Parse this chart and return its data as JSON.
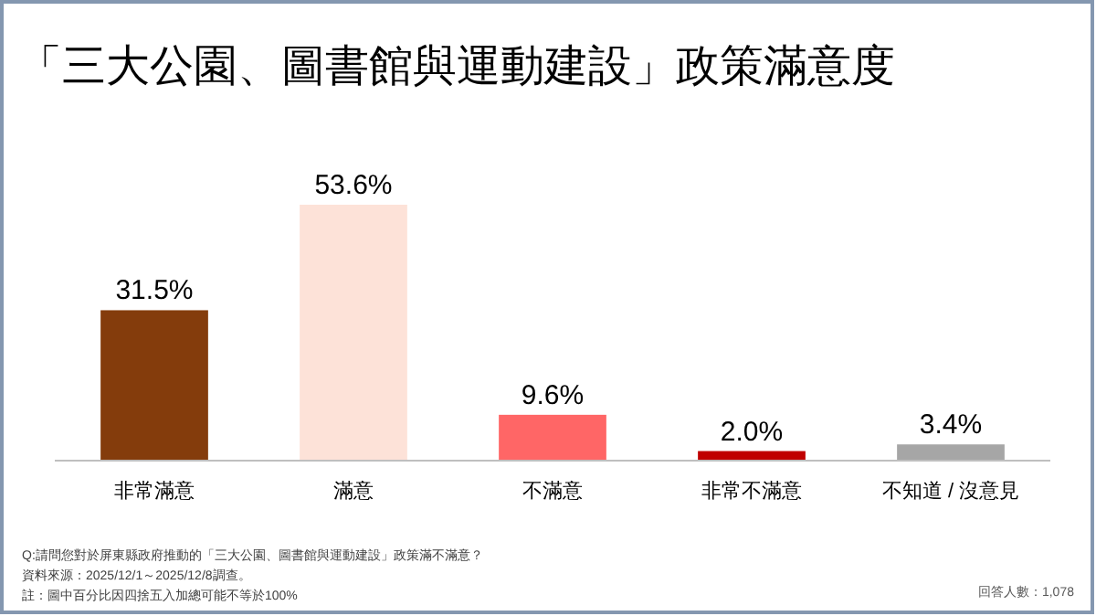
{
  "chart_data": {
    "type": "bar",
    "title": "「三大公園、圖書館與運動建設」政策滿意度",
    "categories": [
      "非常滿意",
      "滿意",
      "不滿意",
      "非常不滿意",
      "不知道 / 沒意見"
    ],
    "values": [
      31.5,
      53.6,
      9.6,
      2.0,
      3.4
    ],
    "value_labels": [
      "31.5%",
      "53.6%",
      "9.6%",
      "2.0%",
      "3.4%"
    ],
    "colors": [
      "#843c0c",
      "#fde2d8",
      "#ff6666",
      "#c00000",
      "#a6a6a6"
    ],
    "annotations": [
      "Q:請問您對於屏東縣政府推動的「三大公園、圖書館與運動建設」政策滿不滿意？",
      "資料來源：2025/12/1～2025/12/8調查。",
      "註：圖中百分比因四捨五入加總可能不等於100%",
      "回答人數：1,078"
    ]
  }
}
